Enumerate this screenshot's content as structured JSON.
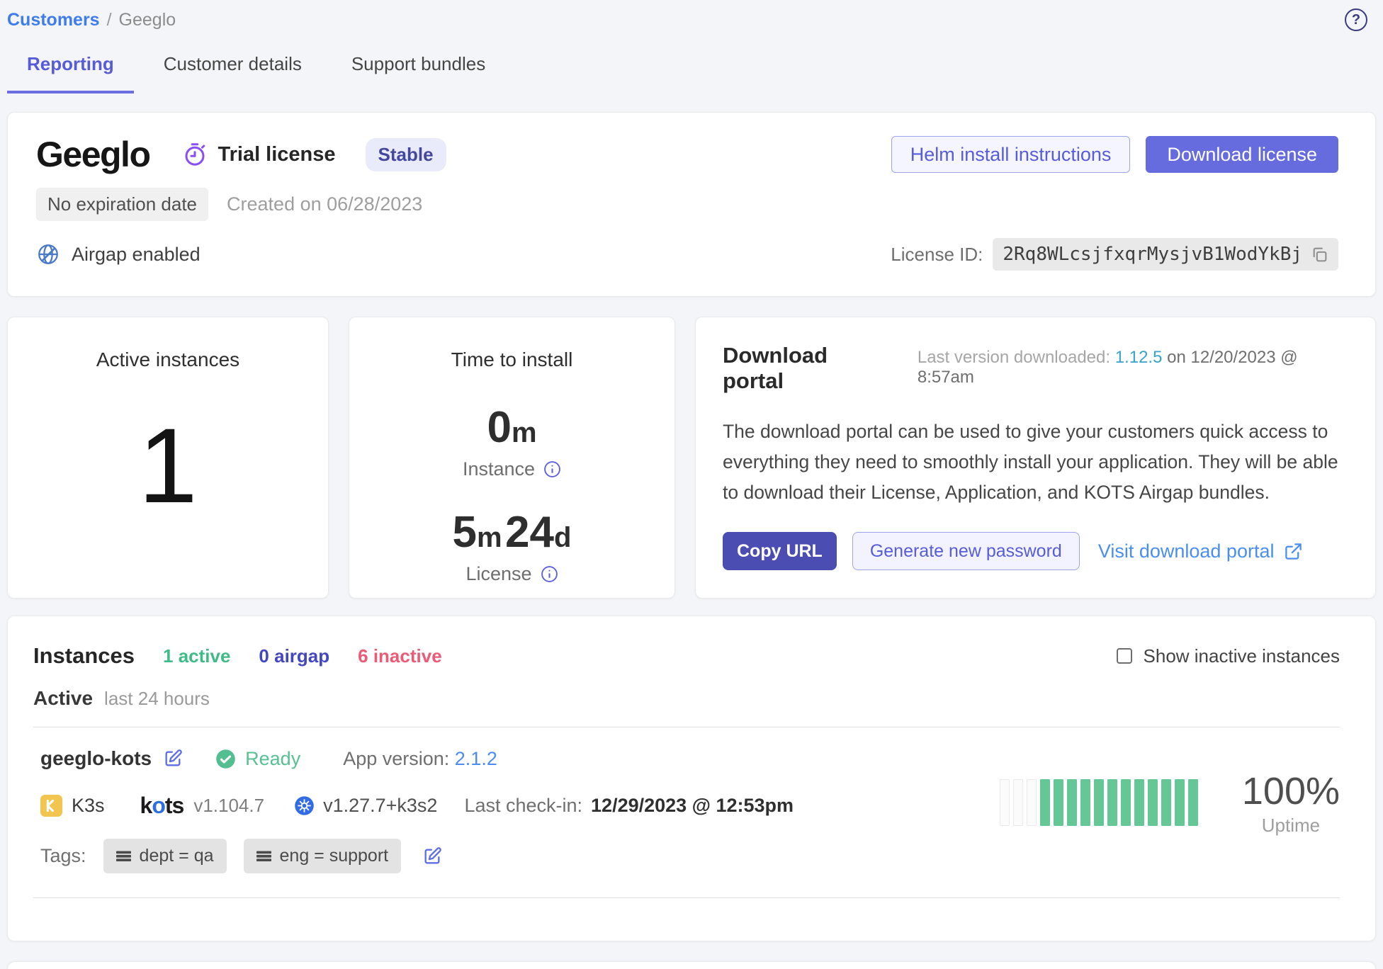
{
  "breadcrumb": {
    "parent": "Customers",
    "separator": "/",
    "current": "Geeglo"
  },
  "icons": {
    "help_glyph": "?"
  },
  "tabs": {
    "reporting": "Reporting",
    "customer_details": "Customer details",
    "support_bundles": "Support bundles"
  },
  "license_card": {
    "customer_name": "Geeglo",
    "license_type": "Trial license",
    "channel_badge": "Stable",
    "expiration_badge": "No expiration date",
    "created_text": "Created on 06/28/2023",
    "airgap_text": "Airgap enabled",
    "helm_button": "Helm install instructions",
    "download_button": "Download license",
    "license_id_label": "License ID:",
    "license_id_value": "2Rq8WLcsjfxqrMysjvB1WodYkBj"
  },
  "stats": {
    "active_instances": {
      "title": "Active instances",
      "count": "1"
    },
    "time_to_install": {
      "title": "Time to install",
      "instance_value": "0",
      "instance_unit": "m",
      "instance_label": "Instance",
      "license_value_minutes": "5",
      "license_unit_minutes": "m",
      "license_value_days": "24",
      "license_unit_days": "d",
      "license_label": "License"
    }
  },
  "download_portal": {
    "title": "Download portal",
    "last_version_label": "Last version downloaded: ",
    "last_version": "1.12.5",
    "last_version_date": " on 12/20/2023 @ 8:57am",
    "description": "The download portal can be used to give your customers quick access to everything they need to smoothly install your application. They will be able to download their License, Application, and KOTS Airgap bundles.",
    "copy_url_button": "Copy URL",
    "generate_password_button": "Generate new password",
    "visit_portal_link": "Visit download portal"
  },
  "instances_section": {
    "title": "Instances",
    "active_count": "1 active",
    "airgap_count": "0 airgap",
    "inactive_count": "6 inactive",
    "show_inactive_label": "Show inactive instances",
    "active_label": "Active",
    "active_sublabel": "last 24 hours",
    "instance": {
      "name": "geeglo-kots",
      "status": "Ready",
      "app_version_label": "App version: ",
      "app_version": "2.1.2",
      "distribution": "K3s",
      "kots_k": "k",
      "kots_o": "o",
      "kots_ts": "ts",
      "kots_version": "v1.104.7",
      "k8s_version": "v1.27.7+k3s2",
      "last_checkin_label": "Last check-in:",
      "last_checkin": "12/29/2023 @ 12:53pm",
      "tags_label": "Tags:",
      "tags": [
        "dept = qa",
        "eng = support"
      ],
      "uptime_percent": "100%",
      "uptime_label": "Uptime",
      "uptime_bars": {
        "empty": 3,
        "filled": 12
      }
    }
  },
  "colors": {
    "accent_indigo": "#666BDE",
    "accent_indigo_dark": "#4B4DB2",
    "link_blue": "#4B8DF0",
    "teal_link": "#38A3CB",
    "green": "#53BE90",
    "pink": "#EC5A75",
    "purple": "#8A4EF6",
    "k3s_yellow": "#F2C550",
    "k8s_blue": "#326CE5"
  }
}
